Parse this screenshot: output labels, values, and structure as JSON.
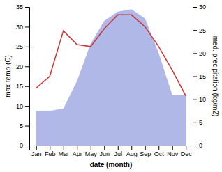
{
  "chart_data": {
    "type": "line",
    "xlabel": "date (month)",
    "ylabel": "max temp (C)",
    "y2label": "med. precipitation (kg/m2)",
    "categories": [
      "Jan",
      "Feb",
      "Mar",
      "Apr",
      "May",
      "Jun",
      "Jul",
      "Aug",
      "Sep",
      "Oct",
      "Nov",
      "Dec"
    ],
    "series": [
      {
        "type": "area",
        "axis": "y2",
        "color": "#b0b8e8",
        "values": [
          7.5,
          7.5,
          8.0,
          14.0,
          22.0,
          27.0,
          29.0,
          29.5,
          27.5,
          20.0,
          11.0,
          11.0
        ]
      },
      {
        "type": "line",
        "color": "#cc3333",
        "values": [
          14.5,
          17.5,
          29.0,
          25.5,
          25.0,
          29.5,
          33.0,
          33.0,
          30.0,
          25.0,
          19.0,
          12.5
        ]
      }
    ],
    "ylim": [
      0,
      35
    ],
    "yticks": [
      0,
      5,
      10,
      15,
      20,
      25,
      30,
      35
    ],
    "y2lim": [
      0,
      30
    ],
    "y2ticks": [
      0,
      5,
      10,
      15,
      20,
      25,
      30
    ],
    "grid": false
  }
}
